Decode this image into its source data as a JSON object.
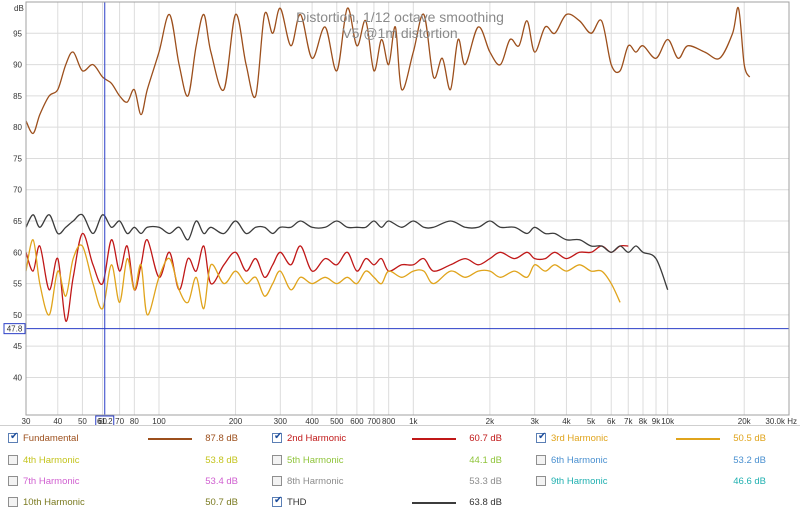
{
  "chart_data": {
    "type": "line",
    "title": "Distortion, 1/12 octave smoothing",
    "subtitle": "V5 @1m distortion",
    "ylabel": "dB",
    "xlabel": "",
    "x_scale": "log",
    "xlim": [
      30,
      30000
    ],
    "ylim": [
      34,
      100
    ],
    "y_ticks": [
      40,
      45,
      50,
      55,
      60,
      65,
      70,
      75,
      80,
      85,
      90,
      95
    ],
    "x_ticks": [
      {
        "v": 30,
        "label": "30"
      },
      {
        "v": 40,
        "label": "40"
      },
      {
        "v": 50,
        "label": "50"
      },
      {
        "v": 60,
        "label": "60"
      },
      {
        "v": 70,
        "label": "70"
      },
      {
        "v": 80,
        "label": "80"
      },
      {
        "v": 100,
        "label": "100"
      },
      {
        "v": 200,
        "label": "200"
      },
      {
        "v": 300,
        "label": "300"
      },
      {
        "v": 400,
        "label": "400"
      },
      {
        "v": 500,
        "label": "500"
      },
      {
        "v": 600,
        "label": "600"
      },
      {
        "v": 700,
        "label": "700"
      },
      {
        "v": 800,
        "label": "800"
      },
      {
        "v": 1000,
        "label": "1k"
      },
      {
        "v": 2000,
        "label": "2k"
      },
      {
        "v": 3000,
        "label": "3k"
      },
      {
        "v": 4000,
        "label": "4k"
      },
      {
        "v": 5000,
        "label": "5k"
      },
      {
        "v": 6000,
        "label": "6k"
      },
      {
        "v": 7000,
        "label": "7k"
      },
      {
        "v": 8000,
        "label": "8k"
      },
      {
        "v": 9000,
        "label": "9k"
      },
      {
        "v": 10000,
        "label": "10k"
      },
      {
        "v": 20000,
        "label": "20k"
      },
      {
        "v": 30000,
        "label": "30.0k Hz"
      }
    ],
    "cursor": {
      "x": 61.2,
      "x_label": "61.2",
      "y": 47.8,
      "y_label": "47.8"
    },
    "series": [
      {
        "name": "Fundamental",
        "color": "#9c4f1c",
        "x": [
          30,
          32,
          34,
          37,
          40,
          43,
          46,
          50,
          55,
          60,
          65,
          70,
          75,
          80,
          85,
          90,
          100,
          110,
          120,
          130,
          140,
          150,
          160,
          180,
          200,
          220,
          240,
          260,
          280,
          300,
          330,
          360,
          400,
          450,
          500,
          550,
          600,
          650,
          700,
          750,
          800,
          850,
          900,
          1000,
          1100,
          1200,
          1300,
          1400,
          1500,
          1600,
          1800,
          2000,
          2200,
          2400,
          2600,
          2800,
          3000,
          3300,
          3600,
          4000,
          4500,
          5000,
          5500,
          6000,
          6500,
          7000,
          7500,
          8000,
          9000,
          10000,
          11000,
          12000,
          14000,
          16000,
          18000,
          19000,
          20000,
          21000
        ],
        "y": [
          81,
          79,
          82,
          85,
          86,
          90,
          92,
          89,
          90,
          88,
          87,
          85,
          84,
          86,
          82,
          86,
          92,
          98,
          90,
          85,
          93,
          98,
          92,
          86,
          98,
          90,
          85,
          98,
          95,
          99,
          93,
          98,
          91,
          96,
          89,
          99,
          93,
          97,
          89,
          94,
          90,
          96,
          86,
          92,
          98,
          88,
          91,
          86,
          94,
          90,
          96,
          92,
          90,
          94,
          93,
          97,
          92,
          96,
          95,
          98,
          97,
          95,
          97,
          90,
          89,
          93,
          92,
          93,
          91,
          94,
          91,
          93,
          92,
          91,
          95,
          99,
          90,
          88
        ]
      },
      {
        "name": "2nd Harmonic",
        "color": "#c01818",
        "x": [
          30,
          32,
          34,
          37,
          40,
          43,
          46,
          50,
          55,
          60,
          65,
          70,
          75,
          80,
          85,
          90,
          100,
          110,
          120,
          130,
          140,
          150,
          160,
          180,
          200,
          220,
          240,
          260,
          280,
          300,
          330,
          360,
          400,
          450,
          500,
          550,
          600,
          650,
          700,
          750,
          800,
          900,
          1000,
          1100,
          1200,
          1400,
          1600,
          1800,
          2000,
          2200,
          2500,
          2800,
          3000,
          3300,
          3600,
          4000,
          4500,
          5000,
          5500,
          6000,
          6500,
          7000
        ],
        "y": [
          60,
          57,
          61,
          54,
          59,
          49,
          56,
          63,
          58,
          55,
          62,
          57,
          61,
          54,
          58,
          62,
          56,
          60,
          54,
          59,
          57,
          61,
          55,
          58,
          60,
          57,
          59,
          56,
          58,
          60,
          58,
          61,
          57,
          59,
          58,
          60,
          57,
          59,
          58,
          59,
          57,
          58,
          58,
          59,
          57,
          58,
          59,
          58,
          59,
          60,
          59,
          60,
          59,
          59,
          60,
          59,
          60,
          60,
          61,
          60,
          61,
          61
        ]
      },
      {
        "name": "3rd Harmonic",
        "color": "#e0a41c",
        "x": [
          30,
          32,
          34,
          37,
          40,
          43,
          46,
          50,
          55,
          60,
          65,
          70,
          75,
          80,
          85,
          90,
          100,
          110,
          120,
          130,
          140,
          150,
          160,
          180,
          200,
          220,
          240,
          260,
          280,
          300,
          330,
          360,
          400,
          450,
          500,
          550,
          600,
          650,
          700,
          750,
          800,
          900,
          1000,
          1100,
          1200,
          1400,
          1600,
          1800,
          2000,
          2200,
          2500,
          2800,
          3000,
          3300,
          3600,
          4000,
          4500,
          5000,
          5500,
          6000,
          6500
        ],
        "y": [
          57,
          62,
          55,
          50,
          57,
          53,
          59,
          61,
          55,
          51,
          58,
          52,
          59,
          54,
          58,
          50,
          56,
          59,
          54,
          52,
          56,
          51,
          58,
          55,
          57,
          55,
          56,
          53,
          55,
          57,
          54,
          56,
          55,
          56,
          55,
          56,
          55,
          57,
          56,
          55,
          57,
          56,
          57,
          57,
          55,
          57,
          56,
          57,
          57,
          56,
          57,
          56,
          58,
          57,
          58,
          57,
          58,
          57,
          57,
          55,
          52
        ]
      },
      {
        "name": "THD",
        "color": "#3c3c3c",
        "x": [
          30,
          32,
          34,
          37,
          40,
          43,
          46,
          50,
          55,
          60,
          65,
          70,
          75,
          80,
          85,
          90,
          100,
          110,
          120,
          130,
          140,
          150,
          160,
          180,
          200,
          220,
          240,
          260,
          280,
          300,
          330,
          360,
          400,
          450,
          500,
          550,
          600,
          650,
          700,
          750,
          800,
          900,
          1000,
          1100,
          1200,
          1400,
          1600,
          1800,
          2000,
          2200,
          2500,
          2800,
          3000,
          3300,
          3600,
          4000,
          4500,
          5000,
          5500,
          6000,
          6500,
          7000,
          7500,
          8000,
          9000,
          10000
        ],
        "y": [
          64,
          66,
          64,
          66,
          63,
          64,
          65,
          66,
          63,
          66,
          64,
          65,
          63,
          64,
          63,
          64,
          64,
          63,
          64,
          62,
          65,
          63,
          64,
          63,
          65,
          63,
          64,
          64,
          63,
          64,
          64,
          65,
          64,
          64,
          65,
          64,
          64,
          64,
          65,
          64,
          65,
          64,
          65,
          64,
          64,
          65,
          64,
          64,
          65,
          64,
          64,
          63,
          64,
          63,
          63,
          62,
          62,
          61,
          61,
          60,
          61,
          60,
          61,
          60,
          59,
          54
        ]
      }
    ]
  },
  "legend": {
    "items": [
      {
        "name": "Fundamental",
        "value": "87.8 dB",
        "checked": true,
        "color": "#9c4f1c",
        "swatch": true
      },
      {
        "name": "2nd Harmonic",
        "value": "60.7 dB",
        "checked": true,
        "color": "#c01818",
        "swatch": true
      },
      {
        "name": "3rd Harmonic",
        "value": "50.5 dB",
        "checked": true,
        "color": "#e0a41c",
        "swatch": true
      },
      {
        "name": "4th Harmonic",
        "value": "53.8 dB",
        "checked": false,
        "color": "#c4c41e",
        "swatch": false
      },
      {
        "name": "5th Harmonic",
        "value": "44.1 dB",
        "checked": false,
        "color": "#8fc43a",
        "swatch": false
      },
      {
        "name": "6th Harmonic",
        "value": "53.2 dB",
        "checked": false,
        "color": "#4a90d0",
        "swatch": false
      },
      {
        "name": "7th Harmonic",
        "value": "53.4 dB",
        "checked": false,
        "color": "#d060d0",
        "swatch": false
      },
      {
        "name": "8th Harmonic",
        "value": "53.3 dB",
        "checked": false,
        "color": "#8c8c8c",
        "swatch": false
      },
      {
        "name": "9th Harmonic",
        "value": "46.6 dB",
        "checked": false,
        "color": "#20b0b0",
        "swatch": false
      },
      {
        "name": "10th Harmonic",
        "value": "50.7 dB",
        "checked": false,
        "color": "#7a7a20",
        "swatch": false
      },
      {
        "name": "THD",
        "value": "63.8 dB",
        "checked": true,
        "color": "#3c3c3c",
        "swatch": true
      }
    ]
  }
}
